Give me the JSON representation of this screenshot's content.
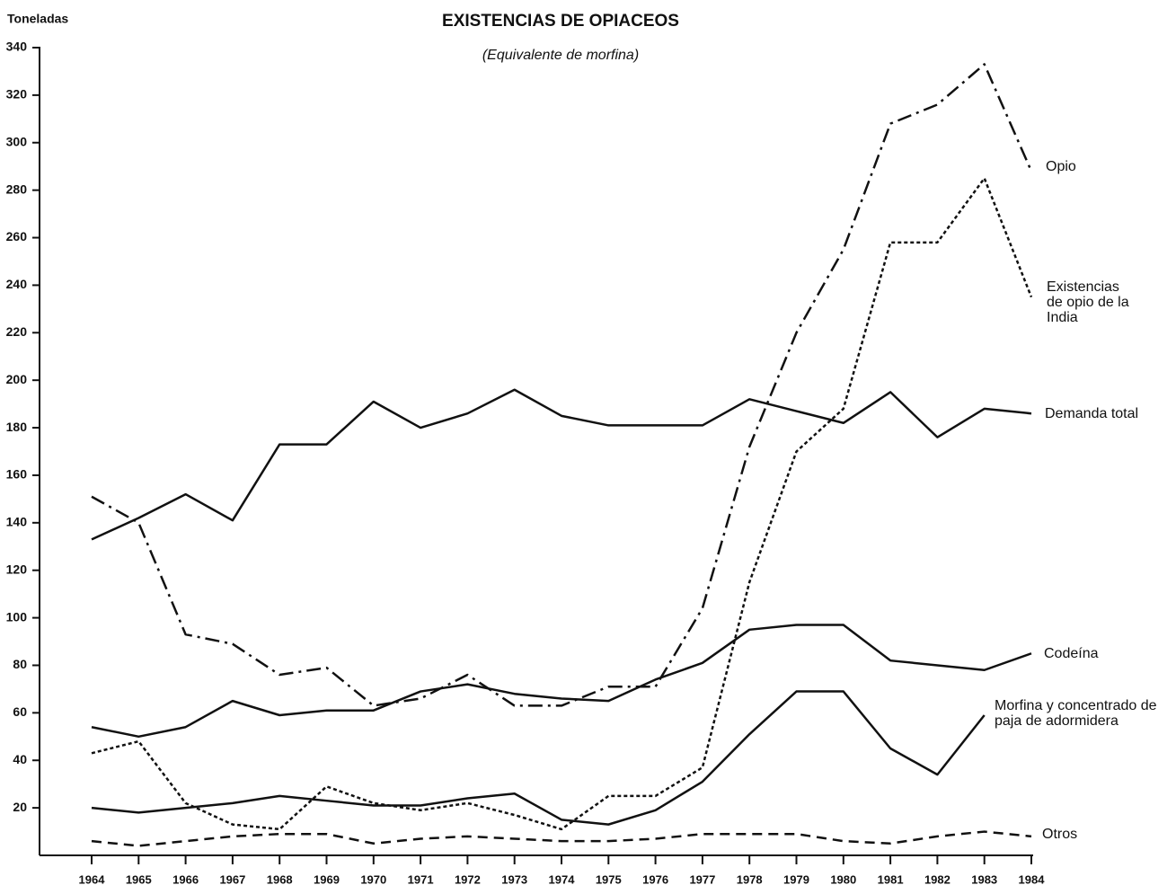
{
  "chart_data": {
    "type": "line",
    "title": "EXISTENCIAS DE OPIACEOS",
    "subtitle": "(Equivalente de morfina)",
    "y_label": "Toneladas",
    "categories": [
      "1964",
      "1965",
      "1966",
      "1967",
      "1968",
      "1969",
      "1970",
      "1971",
      "1972",
      "1973",
      "1974",
      "1975",
      "1976",
      "1977",
      "1978",
      "1979",
      "1980",
      "1981",
      "1982",
      "1983",
      "1984"
    ],
    "ylim": [
      0,
      340
    ],
    "yticks": [
      20,
      40,
      60,
      80,
      100,
      120,
      140,
      160,
      180,
      200,
      220,
      240,
      260,
      280,
      300,
      320,
      340
    ],
    "series": [
      {
        "name": "Opio",
        "color": "#111111",
        "style": "dash-dot",
        "values": [
          151,
          140,
          93,
          89,
          76,
          79,
          63,
          66,
          76,
          63,
          63,
          71,
          71,
          104,
          172,
          220,
          255,
          308,
          316,
          333,
          288
        ]
      },
      {
        "name": "Existencias de opio de la India",
        "color": "#111111",
        "style": "dotted",
        "values": [
          43,
          48,
          22,
          13,
          11,
          29,
          22,
          19,
          22,
          17,
          11,
          25,
          25,
          37,
          115,
          170,
          188,
          258,
          258,
          285,
          235
        ]
      },
      {
        "name": "Demanda total",
        "color": "#111111",
        "style": "solid",
        "values": [
          133,
          142,
          152,
          141,
          173,
          173,
          191,
          180,
          186,
          196,
          185,
          181,
          181,
          181,
          192,
          187,
          182,
          195,
          176,
          188,
          186
        ]
      },
      {
        "name": "Codeína",
        "color": "#111111",
        "style": "solid",
        "values": [
          54,
          50,
          54,
          65,
          59,
          61,
          61,
          69,
          72,
          68,
          66,
          65,
          74,
          81,
          95,
          97,
          97,
          82,
          80,
          78,
          85
        ]
      },
      {
        "name": "Morfina y concentrado de paja de adormidera",
        "color": "#111111",
        "style": "solid",
        "values": [
          20,
          18,
          20,
          22,
          25,
          23,
          21,
          21,
          24,
          26,
          15,
          13,
          19,
          31,
          51,
          69,
          69,
          45,
          34,
          59,
          null
        ]
      },
      {
        "name": "Otros",
        "color": "#111111",
        "style": "dashed",
        "values": [
          6,
          4,
          6,
          8,
          9,
          9,
          5,
          7,
          8,
          7,
          6,
          6,
          7,
          9,
          9,
          9,
          6,
          5,
          8,
          10,
          8
        ]
      }
    ]
  }
}
